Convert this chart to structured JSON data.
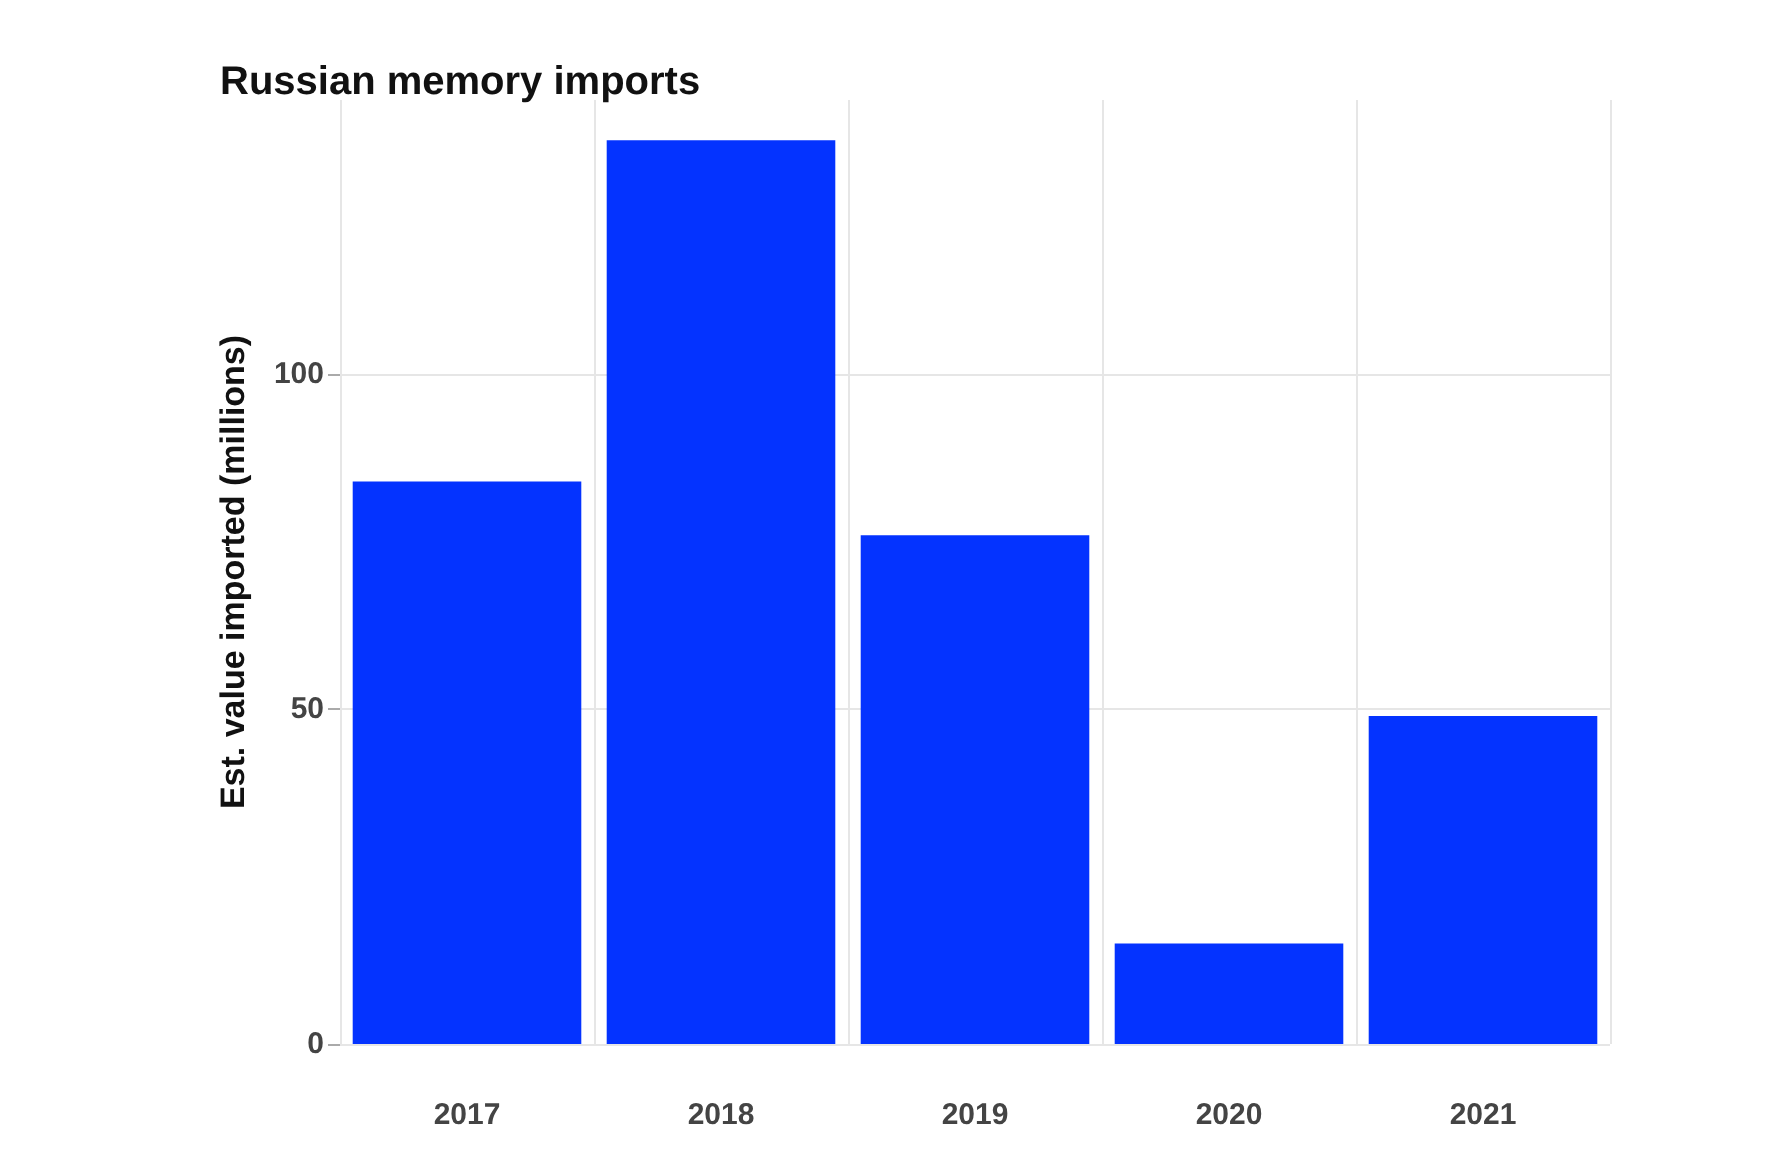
{
  "chart_data": {
    "type": "bar",
    "title": "Russian memory imports",
    "ylabel": "Est. value imported (millions)",
    "categories": [
      "2017",
      "2018",
      "2019",
      "2020",
      "2021"
    ],
    "values": [
      84,
      135,
      76,
      15,
      49
    ],
    "color": "#0433ff",
    "ylim": [
      0,
      141
    ],
    "yticks": [
      0,
      50,
      100
    ],
    "grid": true
  }
}
